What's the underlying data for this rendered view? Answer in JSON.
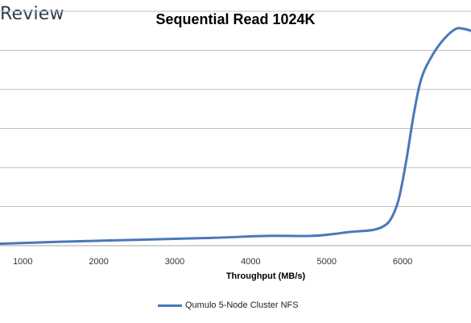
{
  "brand": {
    "text": "Review"
  },
  "chart_data": {
    "type": "line",
    "title": "Sequential Read 1024K",
    "xlabel": "Throughput (MB/s)",
    "ylabel": "",
    "xlim": [
      700,
      6900
    ],
    "ylim": [
      0,
      6
    ],
    "x_ticks": [
      1000,
      2000,
      3000,
      4000,
      5000,
      6000
    ],
    "grid": "horizontal",
    "legend_position": "bottom",
    "series": [
      {
        "name": "Qumulo 5-Node Cluster NFS",
        "color": "#4a78b8",
        "points": [
          [
            700,
            0.05
          ],
          [
            1500,
            0.1
          ],
          [
            2500,
            0.15
          ],
          [
            3500,
            0.2
          ],
          [
            4200,
            0.25
          ],
          [
            4800,
            0.25
          ],
          [
            5100,
            0.3
          ],
          [
            5300,
            0.35
          ],
          [
            5600,
            0.4
          ],
          [
            5750,
            0.5
          ],
          [
            5850,
            0.7
          ],
          [
            5950,
            1.2
          ],
          [
            6050,
            2.2
          ],
          [
            6150,
            3.4
          ],
          [
            6250,
            4.3
          ],
          [
            6400,
            4.9
          ],
          [
            6550,
            5.3
          ],
          [
            6700,
            5.55
          ],
          [
            6800,
            5.55
          ],
          [
            6900,
            5.5
          ]
        ]
      }
    ]
  }
}
